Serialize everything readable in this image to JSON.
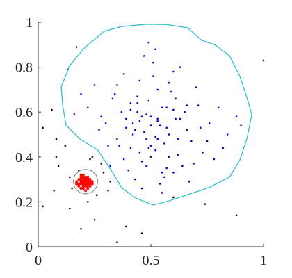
{
  "chart_data": {
    "type": "scatter",
    "xlim": [
      0,
      1
    ],
    "ylim": [
      0,
      1
    ],
    "xticks": [
      0,
      0.5,
      1
    ],
    "yticks": [
      0,
      0.2,
      0.4,
      0.6,
      0.8,
      1
    ],
    "series": [
      {
        "color": "#0000cc",
        "kind": "points",
        "x": [
          0.42,
          0.55,
          0.48,
          0.61,
          0.37,
          0.52,
          0.66,
          0.44,
          0.58,
          0.5,
          0.31,
          0.71,
          0.46,
          0.53,
          0.62,
          0.39,
          0.57,
          0.49,
          0.68,
          0.35,
          0.45,
          0.6,
          0.54,
          0.41,
          0.76,
          0.28,
          0.51,
          0.64,
          0.47,
          0.56,
          0.33,
          0.73,
          0.43,
          0.59,
          0.5,
          0.38,
          0.65,
          0.52,
          0.27,
          0.8,
          0.45,
          0.55,
          0.62,
          0.48,
          0.36,
          0.7,
          0.53,
          0.41,
          0.58,
          0.46,
          0.22,
          0.84,
          0.51,
          0.63,
          0.4,
          0.57,
          0.49,
          0.34,
          0.69,
          0.44,
          0.6,
          0.53,
          0.3,
          0.75,
          0.47,
          0.56,
          0.42,
          0.66,
          0.5,
          0.39,
          0.19,
          0.88,
          0.54,
          0.45,
          0.61,
          0.48,
          0.25,
          0.78,
          0.52,
          0.43,
          0.35,
          0.67,
          0.58,
          0.41,
          0.55,
          0.16,
          0.9,
          0.5,
          0.63,
          0.46,
          0.32,
          0.82,
          0.57,
          0.38,
          0.72,
          0.49,
          0.24,
          0.6,
          0.44,
          0.53
        ],
        "values": [
          0.55,
          0.62,
          0.48,
          0.57,
          0.6,
          0.43,
          0.52,
          0.67,
          0.5,
          0.58,
          0.45,
          0.63,
          0.38,
          0.7,
          0.41,
          0.53,
          0.35,
          0.65,
          0.47,
          0.72,
          0.56,
          0.61,
          0.28,
          0.44,
          0.55,
          0.58,
          0.76,
          0.36,
          0.51,
          0.46,
          0.66,
          0.42,
          0.3,
          0.69,
          0.54,
          0.39,
          0.6,
          0.49,
          0.52,
          0.62,
          0.74,
          0.33,
          0.48,
          0.59,
          0.45,
          0.71,
          0.56,
          0.64,
          0.4,
          0.26,
          0.62,
          0.5,
          0.82,
          0.57,
          0.34,
          0.53,
          0.44,
          0.68,
          0.37,
          0.6,
          0.78,
          0.48,
          0.55,
          0.47,
          0.85,
          0.31,
          0.5,
          0.63,
          0.4,
          0.57,
          0.68,
          0.58,
          0.54,
          0.42,
          0.66,
          0.36,
          0.72,
          0.39,
          0.88,
          0.52,
          0.48,
          0.29,
          0.73,
          0.61,
          0.24,
          0.59,
          0.54,
          0.45,
          0.8,
          0.58,
          0.36,
          0.44,
          0.62,
          0.77,
          0.53,
          0.91,
          0.4,
          0.33,
          0.64,
          0.57
        ]
      },
      {
        "color": "#ff0000",
        "kind": "points",
        "x": [
          0.2,
          0.22,
          0.19,
          0.21,
          0.23,
          0.18,
          0.2,
          0.22,
          0.21,
          0.19,
          0.24,
          0.17,
          0.2,
          0.22,
          0.21,
          0.19,
          0.23,
          0.2,
          0.18,
          0.22,
          0.21,
          0.2,
          0.19,
          0.23,
          0.22,
          0.18,
          0.21,
          0.2,
          0.24,
          0.19,
          0.2,
          0.22,
          0.21,
          0.17,
          0.23,
          0.2,
          0.19,
          0.21,
          0.22,
          0.2
        ],
        "values": [
          0.29,
          0.28,
          0.3,
          0.27,
          0.29,
          0.28,
          0.31,
          0.3,
          0.29,
          0.26,
          0.28,
          0.29,
          0.27,
          0.31,
          0.3,
          0.28,
          0.27,
          0.32,
          0.3,
          0.26,
          0.28,
          0.29,
          0.31,
          0.3,
          0.27,
          0.27,
          0.25,
          0.3,
          0.29,
          0.29,
          0.26,
          0.29,
          0.31,
          0.28,
          0.28,
          0.27,
          0.32,
          0.3,
          0.28,
          0.28
        ]
      },
      {
        "color": "#000000",
        "kind": "points",
        "x": [
          1.0,
          0.17,
          0.06,
          0.08,
          0.02,
          0.12,
          0.09,
          0.07,
          0.02,
          0.14,
          0.19,
          0.25,
          0.39,
          0.35,
          0.46,
          0.29,
          0.32,
          0.28,
          0.23,
          0.14,
          0.15,
          0.26,
          0.22,
          0.74,
          0.6,
          0.88,
          0.18,
          0.31,
          0.08,
          0.13
        ],
        "values": [
          0.83,
          0.89,
          0.61,
          0.48,
          0.53,
          0.45,
          0.36,
          0.25,
          0.18,
          0.17,
          0.08,
          0.12,
          0.09,
          0.02,
          0.06,
          0.33,
          0.29,
          0.37,
          0.39,
          0.31,
          0.26,
          0.23,
          0.2,
          0.19,
          0.22,
          0.14,
          0.34,
          0.25,
          0.4,
          0.79
        ]
      },
      {
        "color": "#22bbcc",
        "kind": "line",
        "x": [
          0.108,
          0.102,
          0.139,
          0.201,
          0.293,
          0.37,
          0.478,
          0.571,
          0.664,
          0.725,
          0.787,
          0.849,
          0.895,
          0.926,
          0.948,
          0.926,
          0.895,
          0.849,
          0.756,
          0.664,
          0.571,
          0.509,
          0.432,
          0.37,
          0.324,
          0.262,
          0.185,
          0.123,
          0.108
        ],
        "values": [
          0.635,
          0.712,
          0.805,
          0.882,
          0.96,
          0.981,
          0.991,
          0.99,
          0.975,
          0.92,
          0.898,
          0.851,
          0.759,
          0.666,
          0.588,
          0.48,
          0.387,
          0.31,
          0.263,
          0.232,
          0.201,
          0.186,
          0.217,
          0.263,
          0.341,
          0.433,
          0.48,
          0.542,
          0.635
        ]
      },
      {
        "color": "#889999",
        "kind": "line",
        "x": [
          0.265,
          0.258,
          0.238,
          0.21,
          0.183,
          0.162,
          0.155,
          0.162,
          0.183,
          0.21,
          0.238,
          0.258,
          0.265
        ],
        "values": [
          0.29,
          0.318,
          0.338,
          0.345,
          0.338,
          0.318,
          0.29,
          0.263,
          0.242,
          0.235,
          0.242,
          0.263,
          0.29
        ]
      }
    ]
  }
}
